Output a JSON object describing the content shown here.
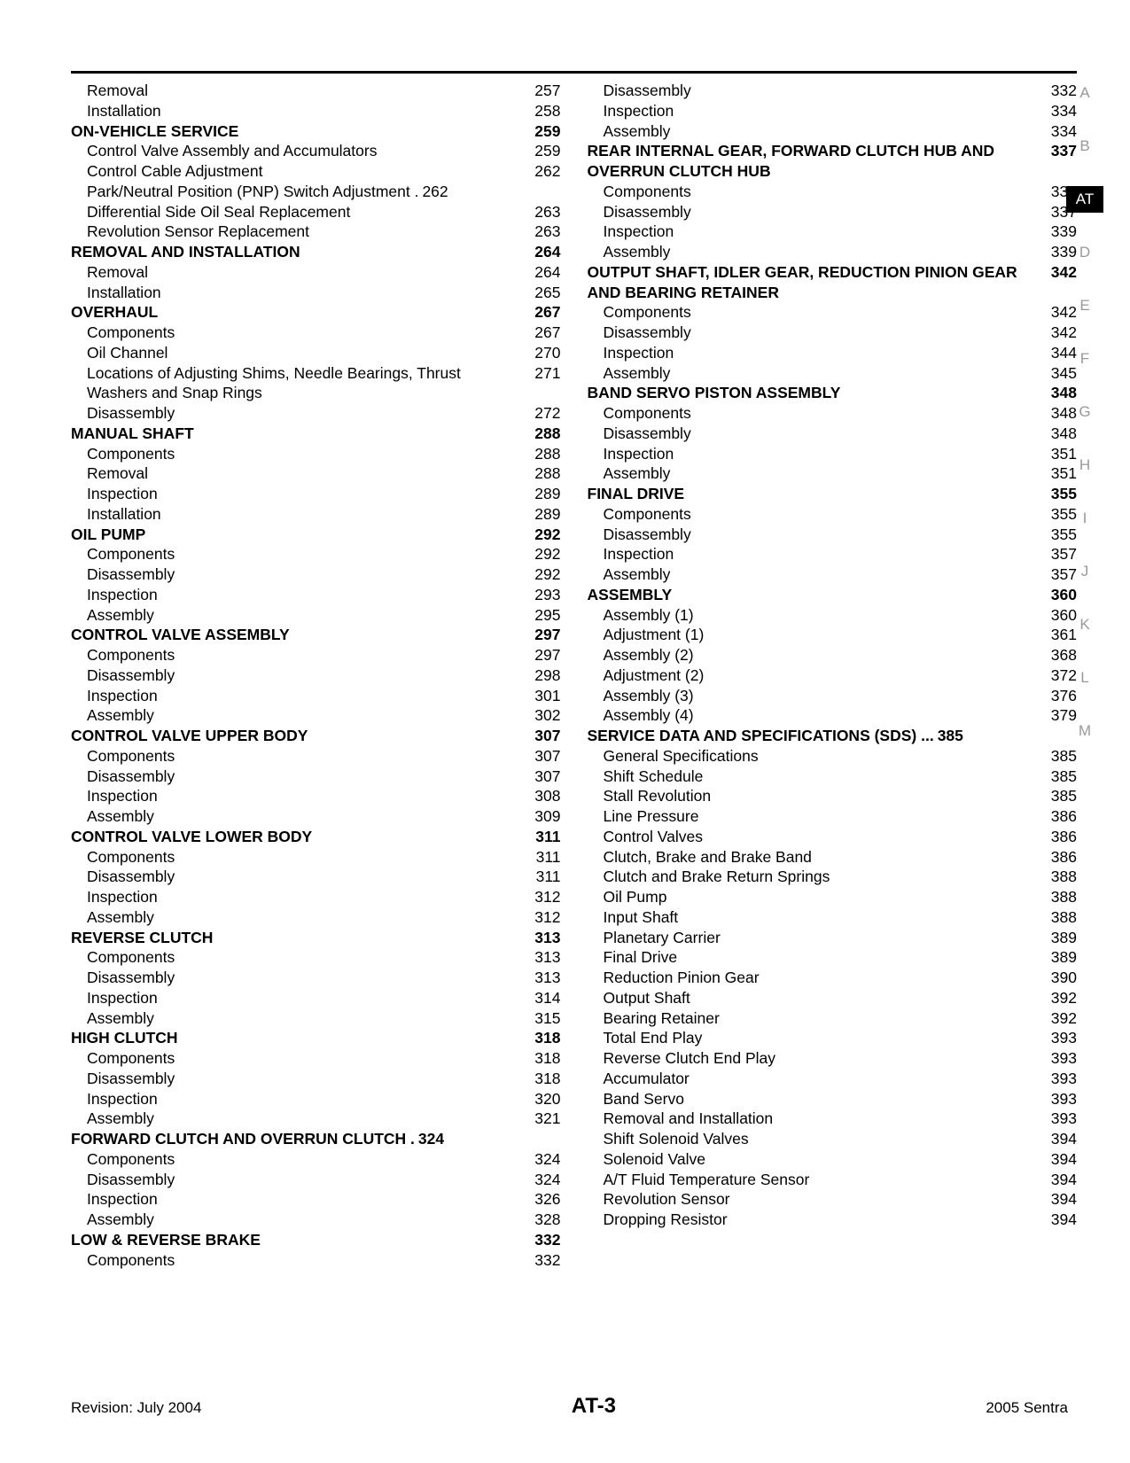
{
  "left_column": [
    {
      "t": "sub",
      "label": "Removal",
      "page": "257"
    },
    {
      "t": "sub",
      "label": "Installation",
      "page": "258"
    },
    {
      "t": "section",
      "label": "ON-VEHICLE SERVICE",
      "page": "259"
    },
    {
      "t": "sub",
      "label": "Control Valve Assembly and Accumulators",
      "page": "259"
    },
    {
      "t": "sub",
      "label": "Control Cable Adjustment",
      "page": "262"
    },
    {
      "t": "sub",
      "label": "Park/Neutral Position (PNP) Switch Adjustment .",
      "page": "262",
      "nodots": true
    },
    {
      "t": "sub",
      "label": "Differential Side Oil Seal Replacement",
      "page": "263"
    },
    {
      "t": "sub",
      "label": "Revolution Sensor Replacement",
      "page": "263"
    },
    {
      "t": "section",
      "label": "REMOVAL AND INSTALLATION",
      "page": "264"
    },
    {
      "t": "sub",
      "label": "Removal",
      "page": "264"
    },
    {
      "t": "sub",
      "label": "Installation",
      "page": "265"
    },
    {
      "t": "section",
      "label": "OVERHAUL",
      "page": "267"
    },
    {
      "t": "sub",
      "label": "Components",
      "page": "267"
    },
    {
      "t": "sub",
      "label": "Oil Channel",
      "page": "270"
    },
    {
      "t": "sub",
      "label": "Locations of Adjusting Shims, Needle Bearings, Thrust Washers and Snap Rings",
      "page": "271"
    },
    {
      "t": "sub",
      "label": "Disassembly",
      "page": "272"
    },
    {
      "t": "section",
      "label": "MANUAL SHAFT",
      "page": "288"
    },
    {
      "t": "sub",
      "label": "Components",
      "page": "288"
    },
    {
      "t": "sub",
      "label": "Removal",
      "page": "288"
    },
    {
      "t": "sub",
      "label": "Inspection",
      "page": "289"
    },
    {
      "t": "sub",
      "label": "Installation",
      "page": "289"
    },
    {
      "t": "section",
      "label": "OIL PUMP",
      "page": "292"
    },
    {
      "t": "sub",
      "label": "Components",
      "page": "292"
    },
    {
      "t": "sub",
      "label": "Disassembly",
      "page": "292"
    },
    {
      "t": "sub",
      "label": "Inspection",
      "page": "293"
    },
    {
      "t": "sub",
      "label": "Assembly",
      "page": "295"
    },
    {
      "t": "section",
      "label": "CONTROL VALVE ASSEMBLY",
      "page": "297"
    },
    {
      "t": "sub",
      "label": "Components",
      "page": "297"
    },
    {
      "t": "sub",
      "label": "Disassembly",
      "page": "298"
    },
    {
      "t": "sub",
      "label": "Inspection",
      "page": "301"
    },
    {
      "t": "sub",
      "label": "Assembly",
      "page": "302"
    },
    {
      "t": "section",
      "label": "CONTROL VALVE UPPER BODY",
      "page": "307"
    },
    {
      "t": "sub",
      "label": "Components",
      "page": "307"
    },
    {
      "t": "sub",
      "label": "Disassembly",
      "page": "307"
    },
    {
      "t": "sub",
      "label": "Inspection",
      "page": "308"
    },
    {
      "t": "sub",
      "label": "Assembly",
      "page": "309"
    },
    {
      "t": "section",
      "label": "CONTROL VALVE LOWER BODY",
      "page": "311"
    },
    {
      "t": "sub",
      "label": "Components",
      "page": "311"
    },
    {
      "t": "sub",
      "label": "Disassembly",
      "page": "311"
    },
    {
      "t": "sub",
      "label": "Inspection",
      "page": "312"
    },
    {
      "t": "sub",
      "label": "Assembly",
      "page": "312"
    },
    {
      "t": "section",
      "label": "REVERSE CLUTCH",
      "page": "313"
    },
    {
      "t": "sub",
      "label": "Components",
      "page": "313"
    },
    {
      "t": "sub",
      "label": "Disassembly",
      "page": "313"
    },
    {
      "t": "sub",
      "label": "Inspection",
      "page": "314"
    },
    {
      "t": "sub",
      "label": "Assembly",
      "page": "315"
    },
    {
      "t": "section",
      "label": "HIGH CLUTCH",
      "page": "318"
    },
    {
      "t": "sub",
      "label": "Components",
      "page": "318"
    },
    {
      "t": "sub",
      "label": "Disassembly",
      "page": "318"
    },
    {
      "t": "sub",
      "label": "Inspection",
      "page": "320"
    },
    {
      "t": "sub",
      "label": "Assembly",
      "page": "321"
    },
    {
      "t": "section",
      "label": "FORWARD CLUTCH AND OVERRUN CLUTCH .",
      "page": "324",
      "nodots": true
    },
    {
      "t": "sub",
      "label": "Components",
      "page": "324"
    },
    {
      "t": "sub",
      "label": "Disassembly",
      "page": "324"
    },
    {
      "t": "sub",
      "label": "Inspection",
      "page": "326"
    },
    {
      "t": "sub",
      "label": "Assembly",
      "page": "328"
    },
    {
      "t": "section",
      "label": "LOW & REVERSE BRAKE",
      "page": "332"
    },
    {
      "t": "sub",
      "label": "Components",
      "page": "332"
    }
  ],
  "right_column": [
    {
      "t": "sub",
      "label": "Disassembly",
      "page": "332"
    },
    {
      "t": "sub",
      "label": "Inspection",
      "page": "334"
    },
    {
      "t": "sub",
      "label": "Assembly",
      "page": "334"
    },
    {
      "t": "section",
      "label": "REAR INTERNAL GEAR, FORWARD CLUTCH HUB AND OVERRUN CLUTCH HUB",
      "page": "337"
    },
    {
      "t": "sub",
      "label": "Components",
      "page": "337"
    },
    {
      "t": "sub",
      "label": "Disassembly",
      "page": "337"
    },
    {
      "t": "sub",
      "label": "Inspection",
      "page": "339"
    },
    {
      "t": "sub",
      "label": "Assembly",
      "page": "339"
    },
    {
      "t": "section",
      "label": "OUTPUT SHAFT, IDLER GEAR, REDUCTION PINION GEAR AND BEARING RETAINER",
      "page": "342"
    },
    {
      "t": "sub",
      "label": "Components",
      "page": "342"
    },
    {
      "t": "sub",
      "label": "Disassembly",
      "page": "342"
    },
    {
      "t": "sub",
      "label": "Inspection",
      "page": "344"
    },
    {
      "t": "sub",
      "label": "Assembly",
      "page": "345"
    },
    {
      "t": "section",
      "label": "BAND SERVO PISTON ASSEMBLY",
      "page": "348"
    },
    {
      "t": "sub",
      "label": "Components",
      "page": "348"
    },
    {
      "t": "sub",
      "label": "Disassembly",
      "page": "348"
    },
    {
      "t": "sub",
      "label": "Inspection",
      "page": "351"
    },
    {
      "t": "sub",
      "label": "Assembly",
      "page": "351"
    },
    {
      "t": "section",
      "label": "FINAL DRIVE",
      "page": "355"
    },
    {
      "t": "sub",
      "label": "Components",
      "page": "355"
    },
    {
      "t": "sub",
      "label": "Disassembly",
      "page": "355"
    },
    {
      "t": "sub",
      "label": "Inspection",
      "page": "357"
    },
    {
      "t": "sub",
      "label": "Assembly",
      "page": "357"
    },
    {
      "t": "section",
      "label": "ASSEMBLY",
      "page": "360"
    },
    {
      "t": "sub",
      "label": "Assembly (1)",
      "page": "360"
    },
    {
      "t": "sub",
      "label": "Adjustment (1)",
      "page": "361"
    },
    {
      "t": "sub",
      "label": "Assembly (2)",
      "page": "368"
    },
    {
      "t": "sub",
      "label": "Adjustment (2)",
      "page": "372"
    },
    {
      "t": "sub",
      "label": "Assembly (3)",
      "page": "376"
    },
    {
      "t": "sub",
      "label": "Assembly (4)",
      "page": "379"
    },
    {
      "t": "section",
      "label": "SERVICE DATA AND SPECIFICATIONS (SDS) ...",
      "page": "385",
      "nodots": true
    },
    {
      "t": "sub",
      "label": "General Specifications",
      "page": "385"
    },
    {
      "t": "sub",
      "label": "Shift Schedule",
      "page": "385"
    },
    {
      "t": "sub",
      "label": "Stall Revolution",
      "page": "385"
    },
    {
      "t": "sub",
      "label": "Line Pressure",
      "page": "386"
    },
    {
      "t": "sub",
      "label": "Control Valves",
      "page": "386"
    },
    {
      "t": "sub",
      "label": "Clutch, Brake and Brake Band",
      "page": "386"
    },
    {
      "t": "sub",
      "label": "Clutch and Brake Return Springs",
      "page": "388"
    },
    {
      "t": "sub",
      "label": "Oil Pump",
      "page": "388"
    },
    {
      "t": "sub",
      "label": "Input Shaft",
      "page": "388"
    },
    {
      "t": "sub",
      "label": "Planetary Carrier",
      "page": "389"
    },
    {
      "t": "sub",
      "label": "Final Drive",
      "page": "389"
    },
    {
      "t": "sub",
      "label": "Reduction Pinion Gear",
      "page": "390"
    },
    {
      "t": "sub",
      "label": "Output Shaft",
      "page": "392"
    },
    {
      "t": "sub",
      "label": "Bearing Retainer",
      "page": "392"
    },
    {
      "t": "sub",
      "label": "Total End Play",
      "page": "393"
    },
    {
      "t": "sub",
      "label": "Reverse Clutch End Play",
      "page": "393"
    },
    {
      "t": "sub",
      "label": "Accumulator",
      "page": "393"
    },
    {
      "t": "sub",
      "label": "Band Servo",
      "page": "393"
    },
    {
      "t": "sub",
      "label": "Removal and Installation",
      "page": "393"
    },
    {
      "t": "sub",
      "label": "Shift Solenoid Valves",
      "page": "394"
    },
    {
      "t": "sub",
      "label": "Solenoid Valve",
      "page": "394"
    },
    {
      "t": "sub",
      "label": "A/T Fluid Temperature Sensor",
      "page": "394"
    },
    {
      "t": "sub",
      "label": "Revolution Sensor",
      "page": "394"
    },
    {
      "t": "sub",
      "label": "Dropping Resistor",
      "page": "394"
    }
  ],
  "tabs": [
    {
      "label": "A",
      "active": false
    },
    {
      "label": "B",
      "active": false
    },
    {
      "label": "AT",
      "active": true
    },
    {
      "label": "D",
      "active": false
    },
    {
      "label": "E",
      "active": false
    },
    {
      "label": "F",
      "active": false
    },
    {
      "label": "G",
      "active": false
    },
    {
      "label": "H",
      "active": false
    },
    {
      "label": "I",
      "active": false
    },
    {
      "label": "J",
      "active": false
    },
    {
      "label": "K",
      "active": false
    },
    {
      "label": "L",
      "active": false
    },
    {
      "label": "M",
      "active": false
    }
  ],
  "footer": {
    "left": "Revision: July 2004",
    "center": "AT-3",
    "right": "2005 Sentra"
  }
}
